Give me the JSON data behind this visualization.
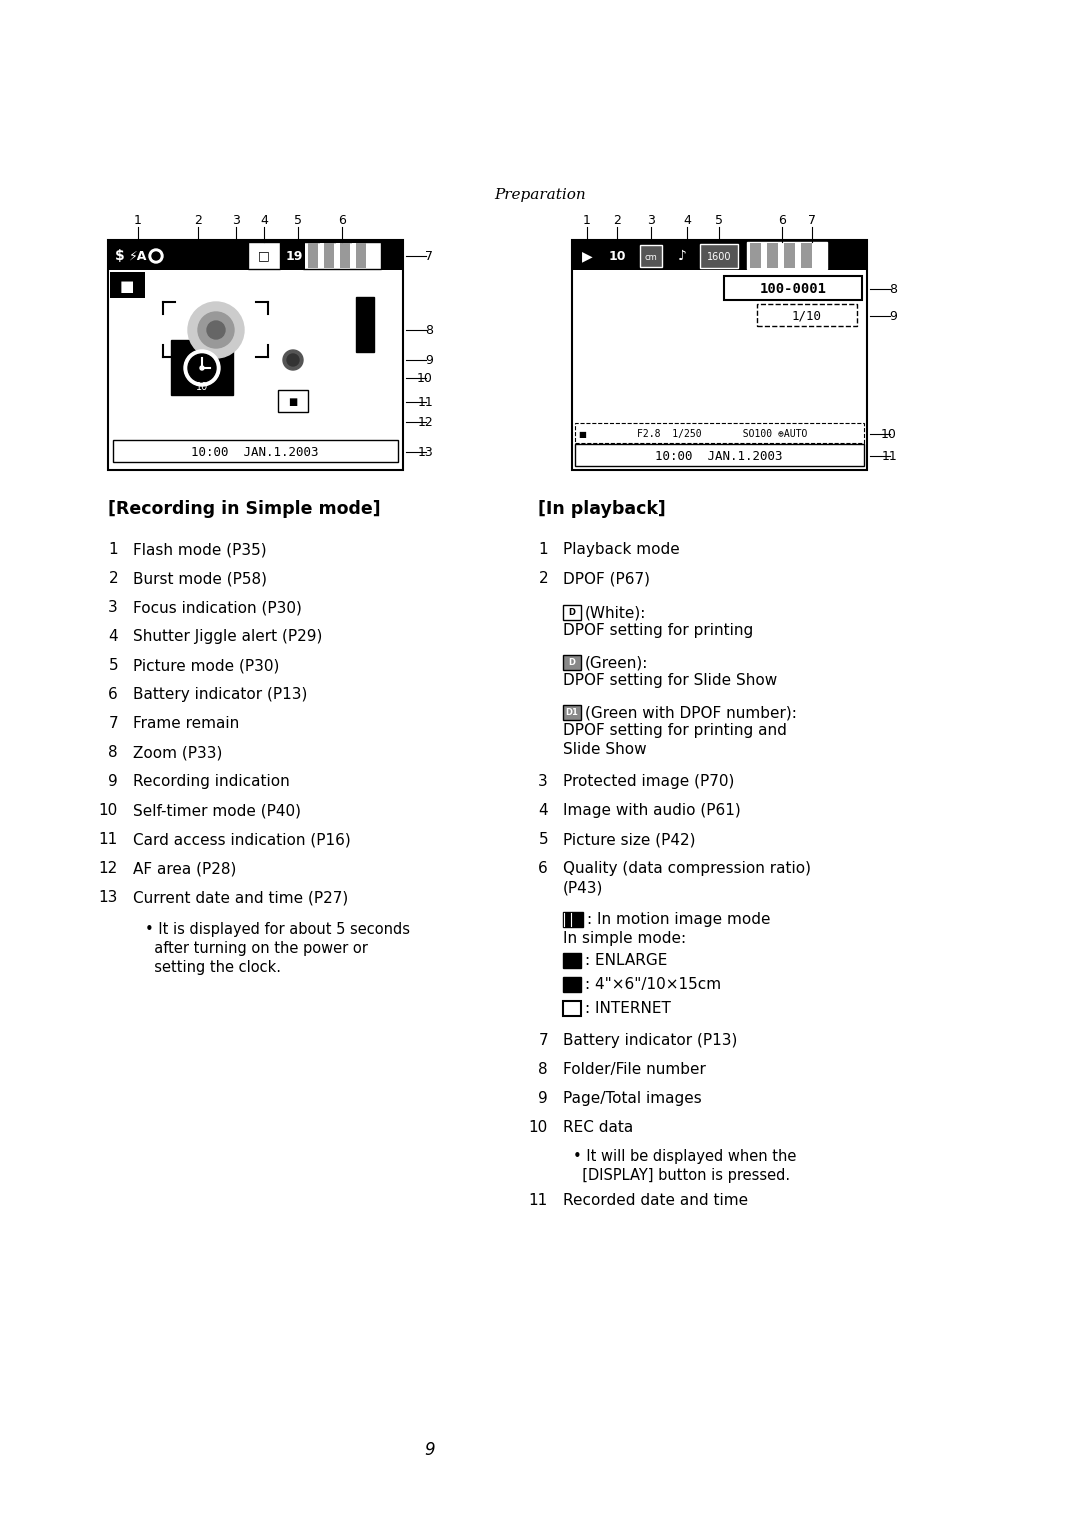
{
  "background_color": "#ffffff",
  "page_number": "9",
  "header_text": "Preparation",
  "left_diagram": {
    "date_text": "10:00  JAN.1.2003"
  },
  "right_diagram": {
    "folder_file": "100-0001",
    "page_total": "1/10",
    "date_text": "10:00  JAN.1.2003",
    "rec_data": "▪F2.8  1/250        SO100⊕AUTO"
  },
  "section_left_title": "[Recording in Simple mode]",
  "section_right_title": "[In playback]",
  "left_items": [
    [
      "1",
      "Flash mode (P35)"
    ],
    [
      "2",
      "Burst mode (P58)"
    ],
    [
      "3",
      "Focus indication (P30)"
    ],
    [
      "4",
      "Shutter Jiggle alert (P29)"
    ],
    [
      "5",
      "Picture mode (P30)"
    ],
    [
      "6",
      "Battery indicator (P13)"
    ],
    [
      "7",
      "Frame remain"
    ],
    [
      "8",
      "Zoom (P33)"
    ],
    [
      "9",
      "Recording indication"
    ],
    [
      "10",
      "Self-timer mode (P40)"
    ],
    [
      "11",
      "Card access indication (P16)"
    ],
    [
      "12",
      "AF area (P28)"
    ],
    [
      "13",
      "Current date and time (P27)"
    ]
  ],
  "left_note": [
    "• It is displayed for about 5 seconds",
    "  after turning on the power or",
    "  setting the clock."
  ],
  "right_items_cont": [
    [
      "3",
      "Protected image (P70)"
    ],
    [
      "4",
      "Image with audio (P61)"
    ],
    [
      "5",
      "Picture size (P42)"
    ],
    [
      "6",
      "Quality (data compression ratio)"
    ]
  ],
  "right_items_end": [
    [
      "7",
      "Battery indicator (P13)"
    ],
    [
      "8",
      "Folder/File number"
    ],
    [
      "9",
      "Page/Total images"
    ],
    [
      "10",
      "REC data"
    ]
  ],
  "rec_note": [
    "• It will be displayed when the",
    "  [DISPLAY] button is pressed."
  ]
}
